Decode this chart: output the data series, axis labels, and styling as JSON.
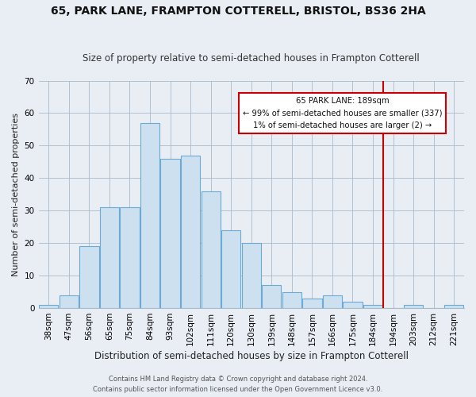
{
  "title": "65, PARK LANE, FRAMPTON COTTERELL, BRISTOL, BS36 2HA",
  "subtitle": "Size of property relative to semi-detached houses in Frampton Cotterell",
  "xlabel": "Distribution of semi-detached houses by size in Frampton Cotterell",
  "ylabel": "Number of semi-detached properties",
  "bar_labels": [
    "38sqm",
    "47sqm",
    "56sqm",
    "65sqm",
    "75sqm",
    "84sqm",
    "93sqm",
    "102sqm",
    "111sqm",
    "120sqm",
    "130sqm",
    "139sqm",
    "148sqm",
    "157sqm",
    "166sqm",
    "175sqm",
    "184sqm",
    "194sqm",
    "203sqm",
    "212sqm",
    "221sqm"
  ],
  "bar_values": [
    1,
    4,
    19,
    31,
    31,
    57,
    46,
    47,
    36,
    24,
    20,
    7,
    5,
    3,
    4,
    2,
    1,
    0,
    1,
    0,
    1
  ],
  "bar_color": "#cce0f0",
  "bar_edge_color": "#6aaad4",
  "ylim": [
    0,
    70
  ],
  "yticks": [
    0,
    10,
    20,
    30,
    40,
    50,
    60,
    70
  ],
  "vline_index": 16,
  "vline_color": "#cc0000",
  "annotation_title": "65 PARK LANE: 189sqm",
  "annotation_line1": "← 99% of semi-detached houses are smaller (337)",
  "annotation_line2": "1% of semi-detached houses are larger (2) →",
  "annotation_box_facecolor": "#ffffff",
  "annotation_border_color": "#cc0000",
  "footer1": "Contains HM Land Registry data © Crown copyright and database right 2024.",
  "footer2": "Contains public sector information licensed under the Open Government Licence v3.0.",
  "background_color": "#e8eef4",
  "plot_background": "#e8eef4",
  "title_fontsize": 10,
  "subtitle_fontsize": 8.5,
  "xlabel_fontsize": 8.5,
  "ylabel_fontsize": 8,
  "tick_fontsize": 7.5,
  "footer_fontsize": 6
}
